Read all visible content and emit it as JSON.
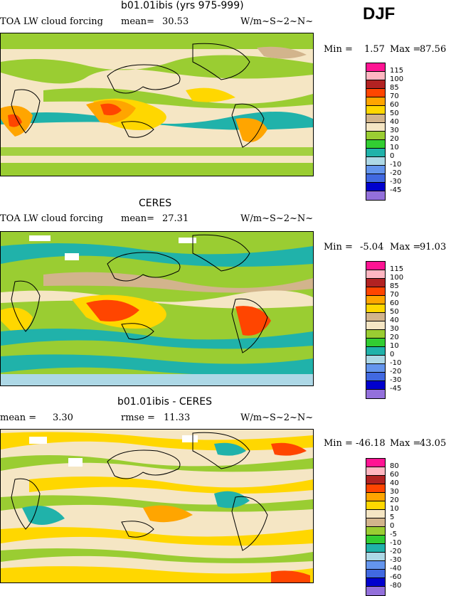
{
  "season": "DJF",
  "panels": [
    {
      "title": "b01.01ibis (yrs 975-999)",
      "left_label": "TOA LW cloud forcing",
      "mean_label": "mean=",
      "mean_value": "30.53",
      "units": "W/m~S~2~N~",
      "min_label": "Min =",
      "min_value": "1.57",
      "max_label": "Max =",
      "max_value": "87.56",
      "legend": {
        "colors": [
          "#ff1493",
          "#ffb6c1",
          "#b22222",
          "#ff4500",
          "#ffa500",
          "#ffd700",
          "#d2b48c",
          "#f5e6c4",
          "#9acd32",
          "#32cd32",
          "#20b2aa",
          "#add8e6",
          "#6495ed",
          "#4169e1",
          "#0000cd",
          "#9370db"
        ],
        "labels": [
          "115",
          "100",
          "85",
          "70",
          "60",
          "50",
          "40",
          "30",
          "20",
          "10",
          "0",
          "-10",
          "-20",
          "-30",
          "-45"
        ]
      }
    },
    {
      "title": "CERES",
      "left_label": "TOA LW cloud forcing",
      "mean_label": "mean=",
      "mean_value": "27.31",
      "units": "W/m~S~2~N~",
      "min_label": "Min =",
      "min_value": "-5.04",
      "max_label": "Max =",
      "max_value": "91.03",
      "legend": {
        "colors": [
          "#ff1493",
          "#ffb6c1",
          "#b22222",
          "#ff4500",
          "#ffa500",
          "#ffd700",
          "#d2b48c",
          "#f5e6c4",
          "#9acd32",
          "#32cd32",
          "#20b2aa",
          "#add8e6",
          "#6495ed",
          "#4169e1",
          "#0000cd",
          "#9370db"
        ],
        "labels": [
          "115",
          "100",
          "85",
          "70",
          "60",
          "50",
          "40",
          "30",
          "20",
          "10",
          "0",
          "-10",
          "-20",
          "-30",
          "-45"
        ]
      }
    },
    {
      "title": "b01.01ibis - CERES",
      "left_label": "mean =",
      "mean_label": "",
      "mean_value": "3.30",
      "rmse_label": "rmse =",
      "rmse_value": "11.33",
      "units": "W/m~S~2~N~",
      "min_label": "Min =",
      "min_value": "-46.18",
      "max_label": "Max =",
      "max_value": "43.05",
      "legend": {
        "colors": [
          "#ff1493",
          "#ffb6c1",
          "#b22222",
          "#ff4500",
          "#ffa500",
          "#ffd700",
          "#f5e6c4",
          "#d2b48c",
          "#9acd32",
          "#32cd32",
          "#20b2aa",
          "#add8e6",
          "#6495ed",
          "#4169e1",
          "#0000cd",
          "#9370db"
        ],
        "labels": [
          "80",
          "60",
          "40",
          "30",
          "20",
          "10",
          "5",
          "0",
          "-5",
          "-10",
          "-20",
          "-30",
          "-40",
          "-60",
          "-80"
        ]
      }
    }
  ]
}
